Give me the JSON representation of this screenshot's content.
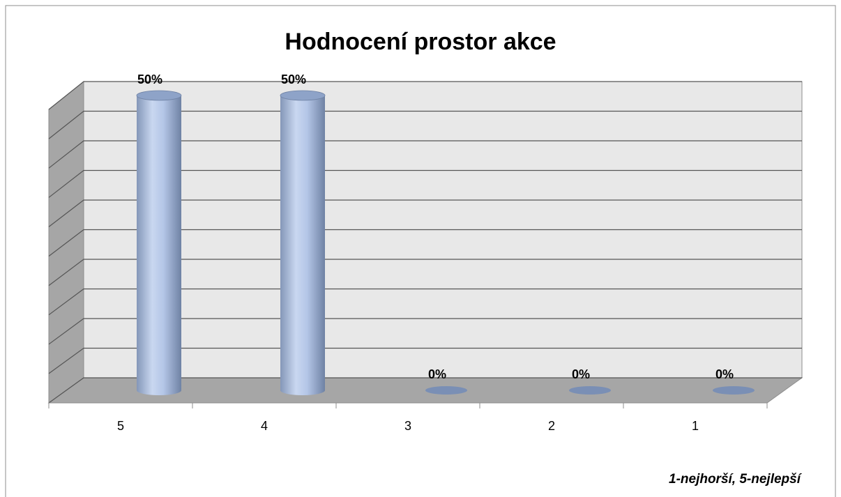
{
  "chart_data": {
    "type": "bar",
    "title": "Hodnocení prostor akce",
    "categories": [
      "5",
      "4",
      "3",
      "2",
      "1"
    ],
    "values": [
      50,
      50,
      0,
      0,
      0
    ],
    "value_labels": [
      "50%",
      "50%",
      "0%",
      "0%",
      "0%"
    ],
    "color": "#b4c6e7",
    "ylim": [
      0,
      50
    ],
    "yticks": [
      0,
      5,
      10,
      15,
      20,
      25,
      30,
      35,
      40,
      45,
      50
    ],
    "grid": true,
    "note": "1-nejhorší, 5-nejlepší"
  }
}
